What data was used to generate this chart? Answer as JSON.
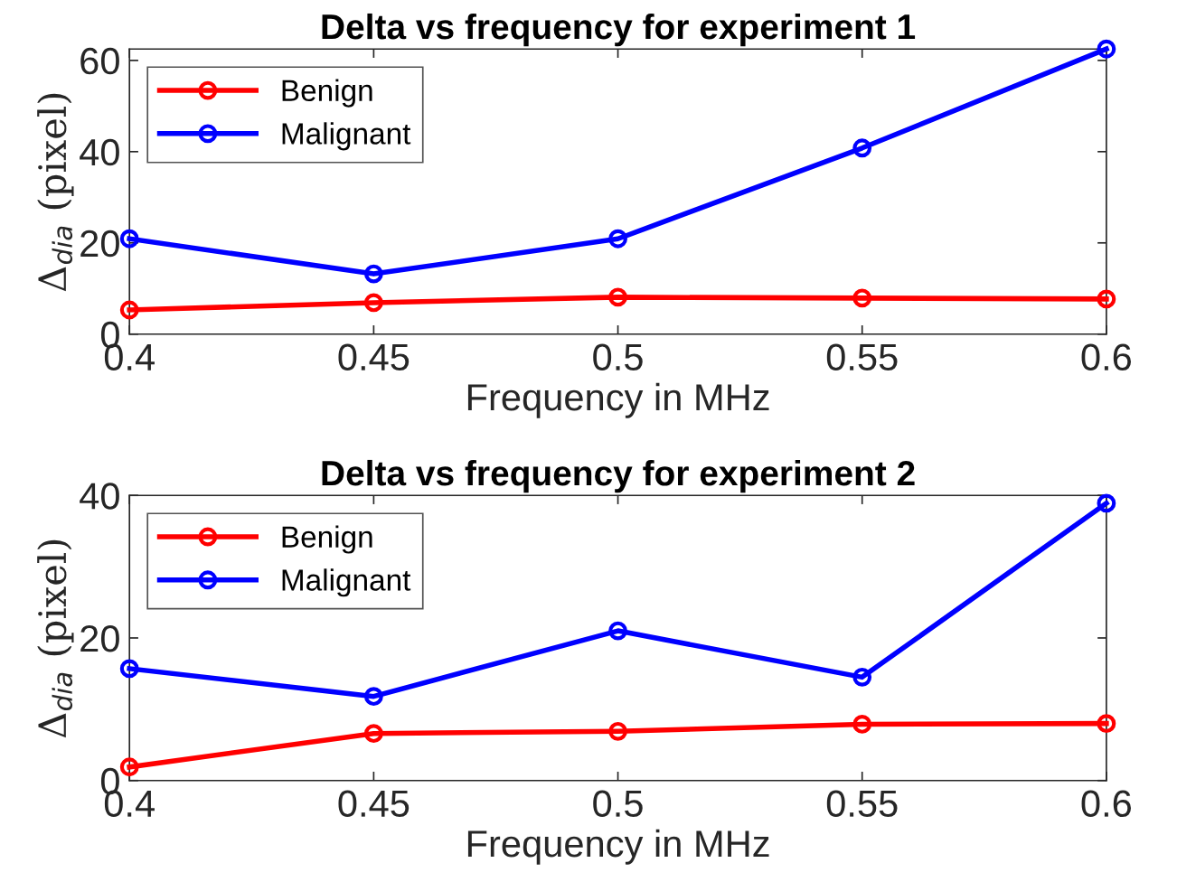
{
  "chart_data": [
    {
      "type": "line",
      "title": "Delta vs frequency for experiment 1",
      "xlabel": "Frequency in MHz",
      "ylabel": "Δ$_{dia}$ (pixel)",
      "x": [
        0.4,
        0.45,
        0.5,
        0.55,
        0.6
      ],
      "series": [
        {
          "name": "Benign",
          "color": "#ff0000",
          "values": [
            5.3,
            6.9,
            8.1,
            7.9,
            7.7
          ]
        },
        {
          "name": "Malignant",
          "color": "#0000ff",
          "values": [
            20.9,
            13.2,
            20.9,
            40.8,
            62.5
          ]
        }
      ],
      "xlim": [
        0.4,
        0.6
      ],
      "xticks": [
        0.4,
        0.45,
        0.5,
        0.55,
        0.6
      ],
      "ylim": [
        0,
        62.5
      ],
      "yticks": [
        0,
        20,
        40,
        60
      ],
      "grid": false,
      "legend": "top left",
      "marker": "circle",
      "line_style": "solid"
    },
    {
      "type": "line",
      "title": "Delta vs frequency for experiment 2",
      "xlabel": "Frequency in MHz",
      "ylabel": "Δ$_{dia}$ (pixel)",
      "x": [
        0.4,
        0.45,
        0.5,
        0.55,
        0.6
      ],
      "series": [
        {
          "name": "Benign",
          "color": "#ff0000",
          "values": [
            1.9,
            6.6,
            6.9,
            7.9,
            8.0
          ]
        },
        {
          "name": "Malignant",
          "color": "#0000ff",
          "values": [
            15.7,
            11.8,
            21.0,
            14.5,
            38.9
          ]
        }
      ],
      "xlim": [
        0.4,
        0.6
      ],
      "xticks": [
        0.4,
        0.45,
        0.5,
        0.55,
        0.6
      ],
      "ylim": [
        0,
        40
      ],
      "yticks": [
        0,
        20,
        40
      ],
      "grid": false,
      "legend": "top left",
      "marker": "circle",
      "line_style": "solid"
    }
  ]
}
